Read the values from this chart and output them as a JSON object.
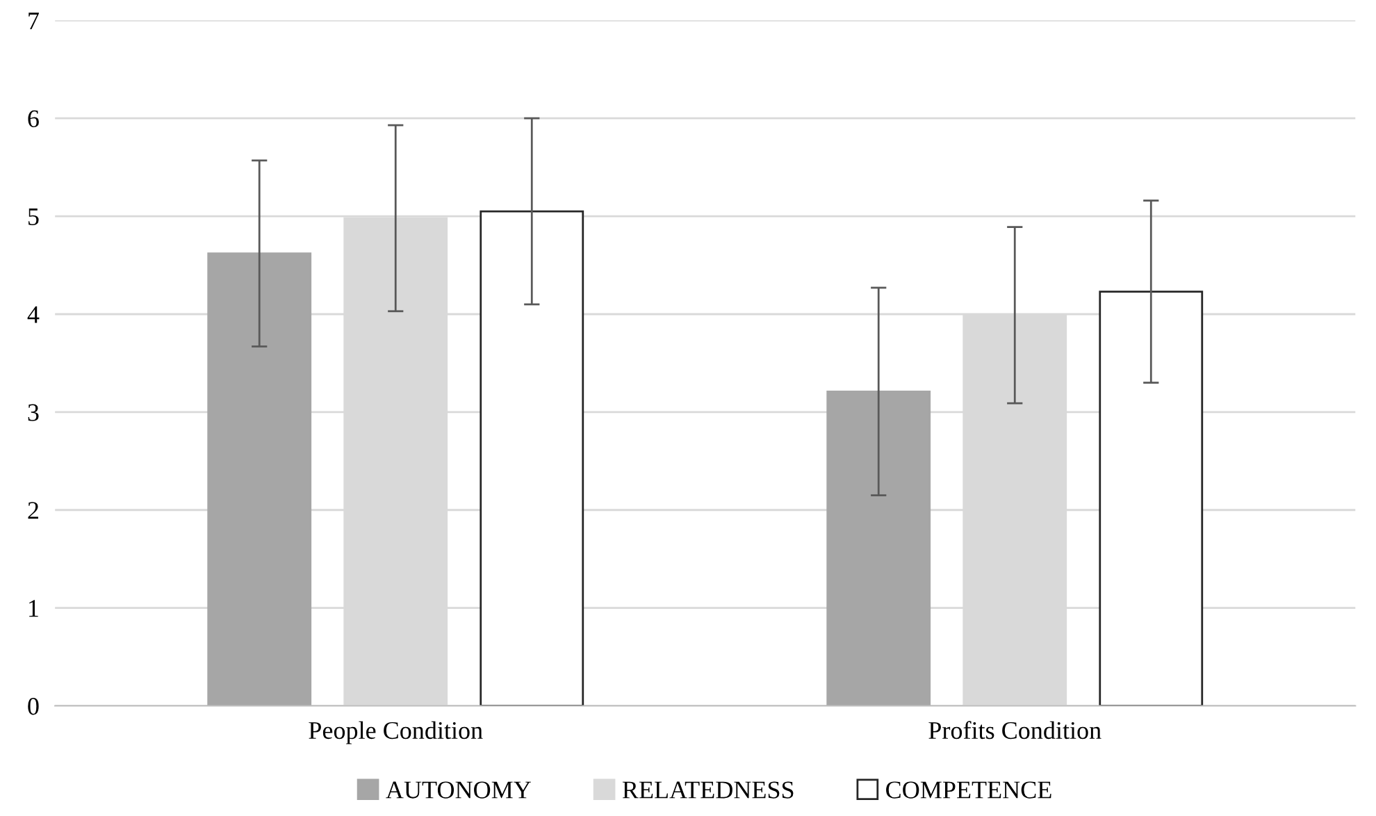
{
  "chart_data": {
    "type": "bar",
    "categories": [
      "People Condition",
      "Profits Condition"
    ],
    "series": [
      {
        "name": "AUTONOMY",
        "color": "#a6a6a6",
        "values": [
          4.62,
          3.21
        ],
        "errors": [
          0.95,
          1.06
        ]
      },
      {
        "name": "RELATEDNESS",
        "color": "#d9d9d9",
        "values": [
          4.98,
          3.99
        ],
        "errors": [
          0.95,
          0.9
        ]
      },
      {
        "name": "COMPETENCE",
        "color": "#ffffff",
        "values": [
          5.05,
          4.23
        ],
        "errors": [
          0.95,
          0.93
        ]
      }
    ],
    "ylim": [
      0,
      7
    ],
    "yticks": [
      0,
      1,
      2,
      3,
      4,
      5,
      6,
      7
    ],
    "grid": "y",
    "legend": "bottom"
  }
}
